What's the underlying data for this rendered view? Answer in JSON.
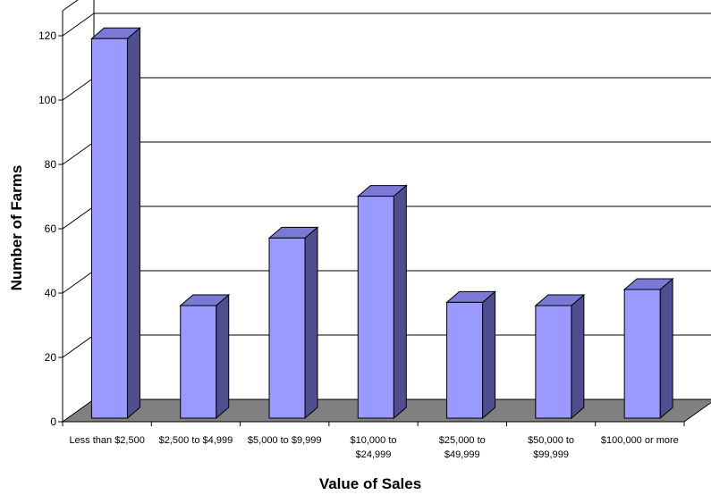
{
  "colors": {
    "bar_front": "#9999FF",
    "bar_side": "#4F4F8F",
    "bar_top": "#7A7AD6",
    "floor": "#808080",
    "grid": "#000000"
  },
  "chart_data": {
    "type": "bar",
    "title": "",
    "xlabel": "Value of Sales",
    "ylabel": "Number of Farms",
    "categories": [
      [
        "Less than $2,500"
      ],
      [
        "$2,500 to $4,999"
      ],
      [
        "$5,000 to $9,999"
      ],
      [
        "$10,000 to",
        "$24,999"
      ],
      [
        "$25,000 to",
        "$49,999"
      ],
      [
        "$50,000 to",
        "$99,999"
      ],
      [
        "$100,000 or more"
      ]
    ],
    "values": [
      118,
      35,
      56,
      69,
      36,
      35,
      40
    ],
    "ylim": [
      0,
      120
    ],
    "yticks": [
      "0",
      "20",
      "40",
      "60",
      "80",
      "100",
      "120"
    ],
    "grid": true,
    "legend": "none",
    "style": "3d"
  }
}
